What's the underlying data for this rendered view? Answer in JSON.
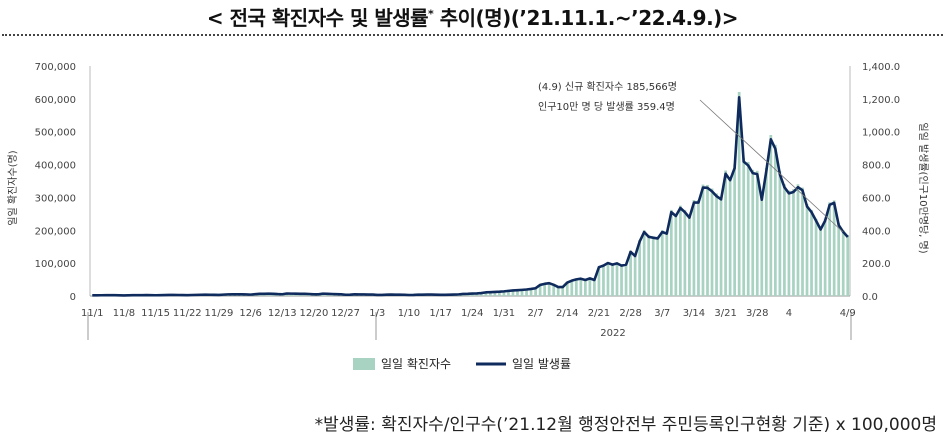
{
  "title": "< 전국 확진자수 및 발생률",
  "title_sup": "*",
  "title_tail": " 추이(명)(’21.11.1.~’22.4.9.)>",
  "footnote": "*발생률: 확진자수/인구수(’21.12월 행정안전부 주민등록인구현황 기준) x 100,000명",
  "colors": {
    "bars": "#a8d2c2",
    "line": "#0f2a5c",
    "axis": "#888888"
  },
  "chart_data": {
    "type": "bar+line",
    "start_date": "2021-11-01",
    "end_date": "2022-04-09",
    "left_axis": {
      "label": "일일 확진자수(명)",
      "ylim": [
        0,
        700000
      ],
      "ticks": [
        "0",
        "100,000",
        "200,000",
        "300,000",
        "400,000",
        "500,000",
        "600,000",
        "700,000"
      ]
    },
    "right_axis": {
      "label": "일일 발생률(인구10만명당, 명)",
      "ylim": [
        0,
        1400
      ],
      "ticks": [
        "0.0",
        "200.0",
        "400.0",
        "600.0",
        "800.0",
        "1,000.0",
        "1,200.0",
        "1,400.0"
      ]
    },
    "x_tick_labels": [
      "11/1",
      "11/8",
      "11/15",
      "11/22",
      "11/29",
      "12/6",
      "12/13",
      "12/20",
      "12/27",
      "1/3",
      "1/10",
      "1/17",
      "1/24",
      "1/31",
      "2/7",
      "2/14",
      "2/21",
      "2/28",
      "3/7",
      "3/14",
      "3/21",
      "3/28",
      "4",
      "4/9"
    ],
    "x_group_label": "2022",
    "series": [
      {
        "name": "일일 확진자수",
        "kind": "bar",
        "axis": "left"
      },
      {
        "name": "일일 발생률",
        "kind": "line",
        "axis": "right"
      }
    ],
    "daily_cases_by_week": [
      [
        2000,
        2100,
        2300,
        2500,
        2600,
        2400,
        2200
      ],
      [
        1800,
        2200,
        2400,
        2500,
        2700,
        2800,
        2600
      ],
      [
        2300,
        2700,
        3000,
        3200,
        3300,
        3100,
        2900
      ],
      [
        2700,
        3100,
        3500,
        3900,
        4100,
        3900,
        3600
      ],
      [
        3300,
        4300,
        5100,
        5200,
        5300,
        5300,
        5000
      ],
      [
        4300,
        5600,
        7000,
        7000,
        7100,
        7000,
        6100
      ],
      [
        5500,
        7800,
        7400,
        7200,
        6900,
        6700,
        6200
      ],
      [
        5300,
        5200,
        7400,
        6900,
        6200,
        5800,
        5400
      ],
      [
        3900,
        4200,
        5400,
        5000,
        4900,
        4600,
        4400
      ],
      [
        3200,
        3400,
        4000,
        4400,
        4100,
        4100,
        3900
      ],
      [
        3100,
        3300,
        4300,
        4200,
        4500,
        4500,
        4200
      ],
      [
        3800,
        3600,
        4000,
        4600,
        5100,
        6400,
        6800
      ],
      [
        7500,
        8000,
        9200,
        11400,
        12000,
        12800,
        13400
      ],
      [
        14500,
        16000,
        17500,
        18300,
        19200,
        20300,
        22000
      ],
      [
        24300,
        34600,
        38000,
        40000,
        35000,
        28000,
        28000
      ],
      [
        42000,
        48000,
        52000,
        54000,
        50000,
        55000,
        50000
      ],
      [
        90000,
        95000,
        103000,
        98000,
        102000,
        95000,
        98000
      ],
      [
        138000,
        125000,
        170000,
        200000,
        185000,
        182000,
        180000
      ],
      [
        200000,
        195000,
        262000,
        250000,
        275000,
        262000,
        245000
      ],
      [
        292000,
        292000,
        339000,
        338000,
        327000,
        312000,
        302000
      ],
      [
        382000,
        362000,
        400000,
        621000,
        420000,
        408000,
        384000
      ],
      [
        381000,
        301000,
        390000,
        490000,
        460000,
        380000,
        340000
      ],
      [
        321000,
        325000,
        340000,
        330000,
        280000,
        262000,
        235000
      ],
      [
        208000,
        235000,
        285000,
        291000,
        222000,
        200000,
        185566
      ]
    ],
    "daily_rate_by_week": [
      [
        4,
        4,
        4.5,
        5,
        5,
        4.7,
        4.3
      ],
      [
        3.5,
        4.3,
        4.7,
        4.9,
        5.2,
        5.4,
        5
      ],
      [
        4.5,
        5.2,
        5.8,
        6.2,
        6.4,
        6,
        5.6
      ],
      [
        5.2,
        6,
        6.8,
        7.6,
        8,
        7.6,
        7
      ],
      [
        6.4,
        8.4,
        9.9,
        10.1,
        10.3,
        10.3,
        9.7
      ],
      [
        8.4,
        10.9,
        13.6,
        13.6,
        13.8,
        13.6,
        11.8
      ],
      [
        10.7,
        15.2,
        14.4,
        14,
        13.4,
        13,
        12.1
      ],
      [
        10.3,
        10.1,
        14.4,
        13.4,
        12.1,
        11.3,
        10.5
      ],
      [
        7.6,
        8.2,
        10.5,
        9.7,
        9.5,
        9,
        8.6
      ],
      [
        6.2,
        6.6,
        7.8,
        8.6,
        8,
        8,
        7.6
      ],
      [
        6,
        6.4,
        8.4,
        8.2,
        8.8,
        8.8,
        8.2
      ],
      [
        7.4,
        7,
        7.8,
        9,
        9.9,
        12.5,
        13.2
      ],
      [
        14.6,
        15.6,
        17.9,
        22.2,
        23.4,
        24.9,
        26.1
      ],
      [
        28.2,
        31.1,
        34.1,
        35.6,
        37.4,
        39.5,
        42.8
      ],
      [
        47.3,
        67.4,
        74,
        77.9,
        68.2,
        54.5,
        54.5
      ],
      [
        81.8,
        93.5,
        101.3,
        105.2,
        97.4,
        107.1,
        97.4
      ],
      [
        175.3,
        185,
        200.6,
        190.9,
        198.7,
        185,
        190.9
      ],
      [
        268.8,
        243.4,
        331.1,
        389.5,
        360.3,
        354.4,
        350.5
      ],
      [
        389.5,
        379.8,
        510.3,
        486.9,
        535.6,
        510.3,
        477.1
      ],
      [
        568.7,
        568.7,
        660.3,
        658.3,
        636.9,
        607.6,
        588.2
      ],
      [
        744,
        705,
        779,
        1209.6,
        818,
        794.7,
        748
      ],
      [
        742,
        586,
        760,
        954,
        896,
        740,
        662
      ],
      [
        625,
        633,
        662,
        643,
        545,
        510,
        458
      ],
      [
        405,
        458,
        555,
        567,
        432,
        390,
        359.4
      ]
    ],
    "annotation": {
      "line1": "(4.9) 신규 확진자수 185,566명",
      "line2": "인구10만 명 당 발생률 359.4명"
    }
  }
}
